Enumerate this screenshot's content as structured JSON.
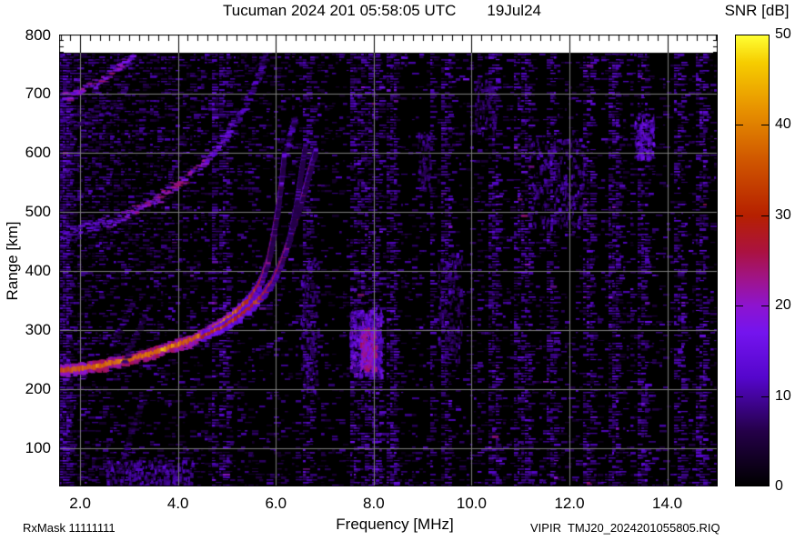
{
  "title": {
    "station_time": "Tucuman 2024 201 05:58:05 UTC",
    "date": "19Jul24"
  },
  "colorbar": {
    "label": "SNR [dB]",
    "min": 0,
    "max": 50,
    "tick_values": [
      0,
      10,
      20,
      30,
      40,
      50
    ],
    "tick_labels": [
      "0",
      "10",
      "20",
      "30",
      "40",
      "50"
    ],
    "inner_tick_values": [
      10,
      20,
      30,
      40
    ],
    "gradient": [
      [
        0,
        "#000000"
      ],
      [
        6,
        "#240048"
      ],
      [
        12,
        "#5506cc"
      ],
      [
        17,
        "#7414ee"
      ],
      [
        20,
        "#8d14cf"
      ],
      [
        23,
        "#a01488"
      ],
      [
        26,
        "#ab1240"
      ],
      [
        30,
        "#b62000"
      ],
      [
        36,
        "#cf5500"
      ],
      [
        42,
        "#e89400"
      ],
      [
        47,
        "#f6cd00"
      ],
      [
        50,
        "#ffff33"
      ]
    ]
  },
  "axes": {
    "x_label": "Frequency [MHz]",
    "y_label": "Range [km]",
    "x_tick_values": [
      2,
      4,
      6,
      8,
      10,
      12,
      14
    ],
    "x_tick_labels": [
      "2.0",
      "4.0",
      "6.0",
      "8.0",
      "10.0",
      "12.0",
      "14.0"
    ],
    "x_minor_step": 0.2,
    "y_tick_values": [
      100,
      200,
      300,
      400,
      500,
      600,
      700,
      800
    ],
    "y_tick_labels": [
      "100",
      "200",
      "300",
      "400",
      "500",
      "600",
      "700",
      "800"
    ],
    "x_range": [
      1.57,
      15.03
    ],
    "y_range": [
      35,
      800
    ],
    "grid_color": "#7d7d7d"
  },
  "footer": {
    "rx_mask": "RxMask 11111111",
    "file_id": "VIPIR  TMJ20_2024201055805.RIQ"
  },
  "chart_data": {
    "type": "heatmap",
    "title": "Tucuman 2024 201 05:58:05 UTC  19Jul24",
    "xlabel": "Frequency [MHz]",
    "ylabel": "Range [km]",
    "zlabel": "SNR [dB]",
    "x_range_mhz": [
      1.57,
      15.03
    ],
    "y_range_km": [
      35,
      800
    ],
    "z_range_db": [
      0,
      50
    ],
    "data_top_km": 769,
    "description": "VIPIR ionogram: echo SNR versus sounding frequency and virtual range. Strong F-layer O/X traces with critical frequency near 6.2-6.9 MHz, multiple-hop echoes at 2x and 3x range in the upper left, diffuse spread echoes, and vertical RFI stripes over a speckled noise background.",
    "traces": [
      {
        "name": "F-layer 1st hop O-mode",
        "style": "solid",
        "width": 5,
        "points": [
          [
            1.57,
            231
          ],
          [
            2.0,
            234
          ],
          [
            2.5,
            241
          ],
          [
            3.0,
            250
          ],
          [
            3.5,
            261
          ],
          [
            4.0,
            275
          ],
          [
            4.3,
            284
          ],
          [
            4.6,
            296
          ],
          [
            4.9,
            311
          ],
          [
            5.2,
            330
          ],
          [
            5.5,
            356
          ],
          [
            5.7,
            383
          ],
          [
            5.85,
            420
          ],
          [
            5.95,
            462
          ],
          [
            6.05,
            512
          ],
          [
            6.12,
            558
          ],
          [
            6.17,
            600
          ]
        ],
        "snr": [
          34,
          36,
          38,
          38,
          38,
          37,
          36,
          36,
          35,
          33,
          29,
          25,
          21,
          19,
          17,
          15,
          13
        ]
      },
      {
        "name": "F-layer 1st hop X-mode",
        "style": "solid",
        "width": 4,
        "points": [
          [
            4.5,
            289
          ],
          [
            4.9,
            304
          ],
          [
            5.3,
            325
          ],
          [
            5.7,
            355
          ],
          [
            5.95,
            384
          ],
          [
            6.15,
            423
          ],
          [
            6.35,
            473
          ],
          [
            6.55,
            528
          ],
          [
            6.7,
            574
          ],
          [
            6.82,
            606
          ]
        ],
        "snr": [
          30,
          30,
          29,
          27,
          25,
          22,
          19,
          16,
          14,
          12
        ]
      },
      {
        "name": "2nd hop echo",
        "style": "diffuse",
        "width": 9,
        "spread": 5,
        "points": [
          [
            1.57,
            462
          ],
          [
            2.0,
            468
          ],
          [
            2.5,
            482
          ],
          [
            3.0,
            500
          ],
          [
            3.5,
            522
          ],
          [
            4.0,
            550
          ],
          [
            4.3,
            568
          ],
          [
            4.6,
            592
          ],
          [
            4.9,
            622
          ],
          [
            5.2,
            660
          ],
          [
            5.45,
            702
          ],
          [
            5.65,
            742
          ],
          [
            5.78,
            768
          ]
        ],
        "snr": [
          15,
          16,
          18,
          20,
          22,
          22,
          21,
          19,
          17,
          15,
          12,
          10,
          8
        ]
      },
      {
        "name": "3rd hop echo",
        "style": "diffuse",
        "width": 8,
        "spread": 4,
        "points": [
          [
            1.57,
            694
          ],
          [
            1.8,
            700
          ],
          [
            2.1,
            710
          ],
          [
            2.4,
            724
          ],
          [
            2.7,
            742
          ],
          [
            2.95,
            760
          ],
          [
            3.08,
            769
          ]
        ],
        "snr": [
          18,
          20,
          22,
          22,
          21,
          18,
          16
        ]
      },
      {
        "name": "diffuse inter-hop band",
        "style": "diffuse",
        "width": 10,
        "spread": 8,
        "points": [
          [
            1.57,
            642
          ],
          [
            2.0,
            656
          ],
          [
            2.5,
            672
          ],
          [
            2.9,
            690
          ]
        ],
        "snr": [
          10,
          11,
          10,
          8
        ]
      },
      {
        "name": "oblique spur near cusp",
        "style": "solid",
        "width": 2,
        "points": [
          [
            6.25,
            445
          ],
          [
            6.4,
            505
          ],
          [
            6.5,
            560
          ],
          [
            6.6,
            615
          ]
        ],
        "snr": [
          13,
          14,
          13,
          10
        ]
      },
      {
        "name": "cusp fork",
        "style": "diffuse",
        "width": 2,
        "spread": 3,
        "points": [
          [
            6.18,
            602
          ],
          [
            6.28,
            638
          ],
          [
            6.36,
            660
          ]
        ],
        "snr": [
          12,
          11,
          9
        ]
      },
      {
        "name": "slant streak a",
        "style": "diffuse",
        "width": 2,
        "spread": 2,
        "points": [
          [
            2.6,
            272
          ],
          [
            3.05,
            352
          ]
        ],
        "snr": [
          8,
          9
        ]
      },
      {
        "name": "slant streak b",
        "style": "diffuse",
        "width": 2,
        "spread": 2,
        "points": [
          [
            2.85,
            245
          ],
          [
            3.3,
            328
          ]
        ],
        "snr": [
          7,
          8
        ]
      },
      {
        "name": "slant streak c",
        "style": "diffuse",
        "width": 2,
        "spread": 2,
        "points": [
          [
            2.75,
            60
          ],
          [
            3.25,
            185
          ]
        ],
        "snr": [
          7,
          8
        ]
      }
    ],
    "rfi_patches": [
      {
        "f": [
          7.5,
          8.15
        ],
        "km": [
          225,
          335
        ],
        "snr": [
          7,
          20
        ],
        "count": 520
      },
      {
        "f": [
          7.72,
          8.02
        ],
        "km": [
          235,
          305
        ],
        "snr": [
          15,
          26
        ],
        "count": 240
      },
      {
        "f": [
          13.32,
          13.72
        ],
        "km": [
          592,
          668
        ],
        "snr": [
          8,
          18
        ],
        "count": 150
      },
      {
        "f": [
          11.15,
          12.3
        ],
        "km": [
          475,
          625
        ],
        "snr": [
          5,
          13
        ],
        "count": 280
      },
      {
        "f": [
          9.3,
          9.8
        ],
        "km": [
          245,
          435
        ],
        "snr": [
          5,
          12
        ],
        "count": 160
      },
      {
        "f": [
          2.5,
          4.3
        ],
        "km": [
          38,
          82
        ],
        "snr": [
          6,
          14
        ],
        "count": 230
      },
      {
        "f": [
          6.5,
          6.85
        ],
        "km": [
          195,
          425
        ],
        "snr": [
          5,
          12
        ],
        "count": 140
      },
      {
        "f": [
          10.05,
          10.5
        ],
        "km": [
          635,
          725
        ],
        "snr": [
          5,
          11
        ],
        "count": 90
      },
      {
        "f": [
          8.9,
          9.15
        ],
        "km": [
          540,
          640
        ],
        "snr": [
          5,
          11
        ],
        "count": 80
      }
    ],
    "rfi_column_freqs": [
      1.63,
      4.95,
      6.6,
      7.6,
      7.78,
      7.93,
      8.07,
      8.35,
      9.45,
      10.4,
      11.0,
      11.6,
      12.35,
      12.9,
      13.5,
      14.2,
      14.65
    ],
    "noise": {
      "dash_snr": [
        3,
        12
      ],
      "bright_fraction": 0.06
    }
  }
}
